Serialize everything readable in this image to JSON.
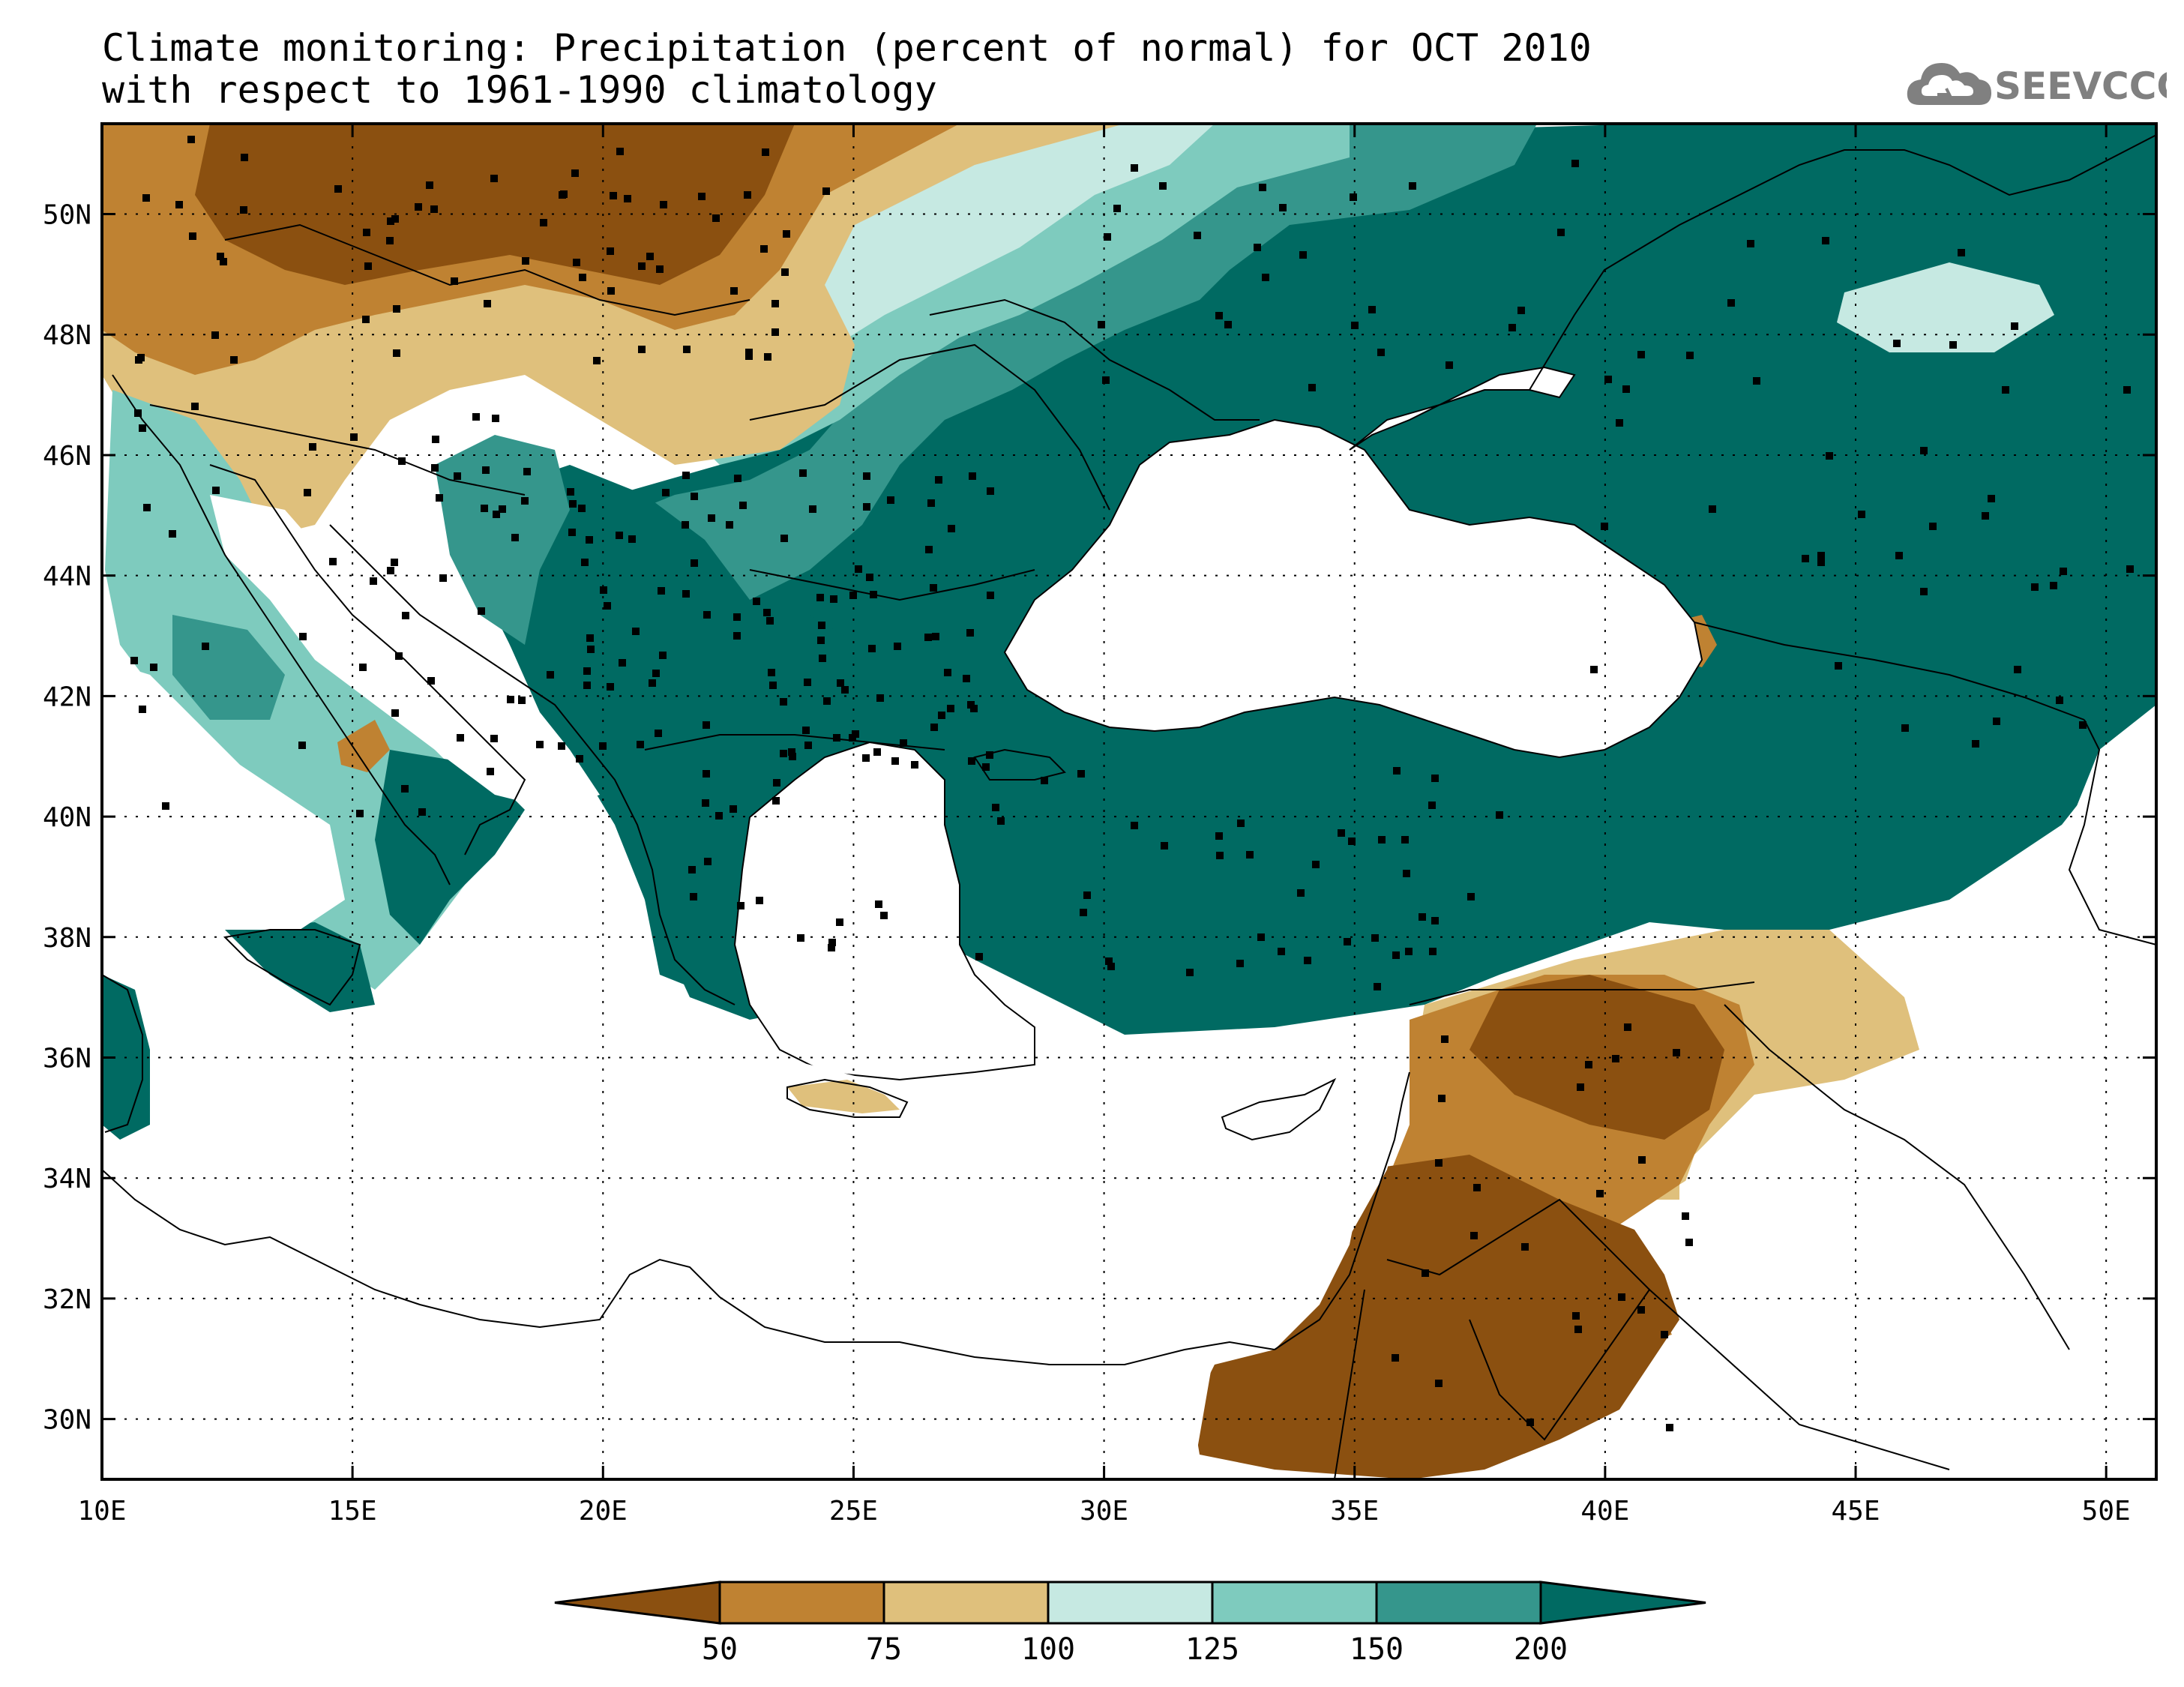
{
  "title": {
    "line1": "Climate monitoring: Precipitation (percent of normal) for OCT 2010",
    "line2": "with respect to 1961-1990 climatology"
  },
  "logo": {
    "text": "SEEVCCC",
    "icon": "cloud-icon",
    "color": "#808080"
  },
  "map": {
    "lon_range": [
      10,
      51
    ],
    "lat_range": [
      29,
      51.5
    ],
    "lon_ticks": [
      "10E",
      "15E",
      "20E",
      "25E",
      "30E",
      "35E",
      "40E",
      "45E",
      "50E"
    ],
    "lat_ticks": [
      "30N",
      "32N",
      "34N",
      "36N",
      "38N",
      "40N",
      "42N",
      "44N",
      "46N",
      "48N",
      "50N"
    ],
    "grid": "dotted"
  },
  "legend": {
    "thresholds": [
      "50",
      "75",
      "100",
      "125",
      "150",
      "200"
    ],
    "colors": [
      "#8b5010",
      "#bf8232",
      "#dfc07c",
      "#c6e9e2",
      "#7ecbbe",
      "#35968c",
      "#006a62"
    ]
  }
}
